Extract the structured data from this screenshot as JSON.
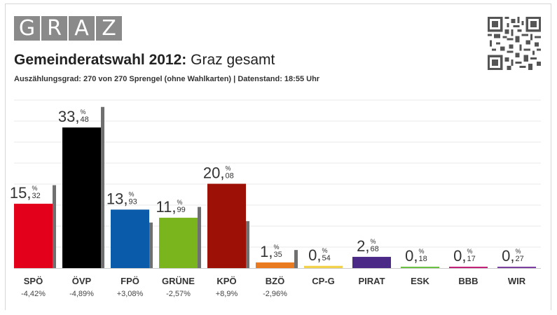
{
  "logo": {
    "letters": [
      "G",
      "R",
      "A",
      "Z"
    ],
    "color": "#8a8a8a"
  },
  "header": {
    "title_bold": "Gemeinderatswahl 2012:",
    "title_rest": " Graz gesamt",
    "subtitle_part1": "Auszählungsgrad: 270 von 270 Sprengel (ohne Wahlkarten)",
    "subtitle_sep": " | ",
    "subtitle_part2": "Datenstand: 18:55 Uhr"
  },
  "qr_icon": "qr-code-icon",
  "chart_data": {
    "type": "bar",
    "title": "Gemeinderatswahl 2012: Graz gesamt",
    "unit": "%",
    "categories": [
      "SPÖ",
      "ÖVP",
      "FPÖ",
      "GRÜNE",
      "KPÖ",
      "BZÖ",
      "CP-G",
      "PIRAT",
      "ESK",
      "BBB",
      "WIR"
    ],
    "series": [
      {
        "values": [
          15.32,
          33.48,
          13.93,
          11.99,
          20.08,
          1.35,
          0.54,
          2.68,
          0.18,
          0.17,
          0.27
        ],
        "integer_labels": [
          "15,",
          "33,",
          "13,",
          "11,",
          "20,",
          "1,",
          "0,",
          "2,",
          "0,",
          "0,",
          "0,"
        ],
        "decimal_labels": [
          "32",
          "48",
          "93",
          "99",
          "08",
          "35",
          "54",
          "68",
          "18",
          "17",
          "27"
        ]
      },
      {
        "values": [
          19.74,
          38.37,
          10.85,
          14.56,
          11.18,
          4.31,
          null,
          null,
          null,
          null,
          null
        ]
      }
    ],
    "changes": [
      "-4,42%",
      "-4,89%",
      "+3,08%",
      "-2,57%",
      "+8,9%",
      "-2,96%",
      "",
      "",
      "",
      "",
      ""
    ],
    "colors": [
      "#e2001a",
      "#000000",
      "#0b5bab",
      "#7ab51d",
      "#9c1006",
      "#e97a1f",
      "#f2d24a",
      "#4a2a86",
      "#6cbf45",
      "#c2217a",
      "#7b3fa0"
    ],
    "previous_color": "#707070",
    "ylim": [
      0,
      40
    ],
    "grid": true
  }
}
